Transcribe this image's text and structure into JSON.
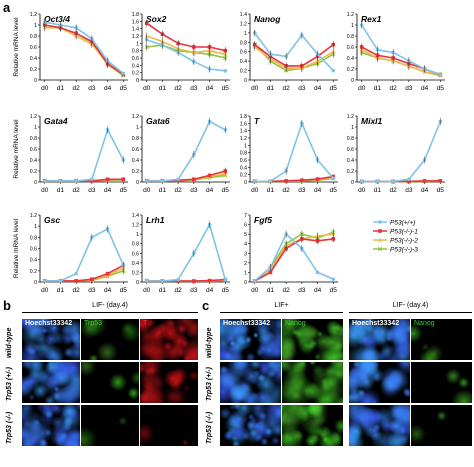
{
  "panels": {
    "a": "a",
    "b": "b",
    "c": "c"
  },
  "chart_data": [
    {
      "type": "line",
      "title": "Oct3/4",
      "ylabel": "Relative mRNA level",
      "ylim": [
        0,
        1.2
      ],
      "yticks": [
        "0",
        "0.2",
        "0.4",
        "0.6",
        "0.8",
        "1",
        "1.2"
      ],
      "categories": [
        "d0",
        "d1",
        "d2",
        "d3",
        "d4",
        "d5"
      ],
      "series": [
        {
          "name": "P53(+/+)",
          "values": [
            1.05,
            1.0,
            0.95,
            0.75,
            0.35,
            0.12
          ]
        },
        {
          "name": "P53(-/-)-1",
          "values": [
            1.0,
            0.95,
            0.85,
            0.7,
            0.3,
            0.1
          ]
        },
        {
          "name": "P53(-/-)-2",
          "values": [
            0.95,
            0.95,
            0.8,
            0.65,
            0.3,
            0.1
          ]
        },
        {
          "name": "P53(-/-)-3",
          "values": [
            1.0,
            0.95,
            0.85,
            0.68,
            0.28,
            0.08
          ]
        }
      ]
    },
    {
      "type": "line",
      "title": "Sox2",
      "ylim": [
        0,
        1.8
      ],
      "yticks": [
        "0",
        "0.2",
        "0.4",
        "0.6",
        "0.8",
        "1",
        "1.2",
        "1.4",
        "1.6",
        "1.8"
      ],
      "categories": [
        "d0",
        "d1",
        "d2",
        "d3",
        "d4",
        "d5"
      ],
      "series": [
        {
          "name": "P53(+/+)",
          "values": [
            1.1,
            0.95,
            0.75,
            0.5,
            0.3,
            0.25
          ]
        },
        {
          "name": "P53(-/-)-1",
          "values": [
            1.55,
            1.25,
            1.0,
            0.9,
            0.9,
            0.8
          ]
        },
        {
          "name": "P53(-/-)-2",
          "values": [
            1.2,
            1.05,
            0.85,
            0.75,
            0.8,
            0.7
          ]
        },
        {
          "name": "P53(-/-)-3",
          "values": [
            0.9,
            0.95,
            0.8,
            0.75,
            0.7,
            0.6
          ]
        }
      ]
    },
    {
      "type": "line",
      "title": "Nanog",
      "ylim": [
        0,
        1.4
      ],
      "yticks": [
        "0",
        "0.2",
        "0.4",
        "0.6",
        "0.8",
        "1",
        "1.2",
        "1.4"
      ],
      "categories": [
        "d0",
        "d1",
        "d2",
        "d3",
        "d4",
        "d5"
      ],
      "series": [
        {
          "name": "P53(+/+)",
          "values": [
            1.0,
            0.55,
            0.5,
            0.95,
            0.55,
            0.2
          ]
        },
        {
          "name": "P53(-/-)-1",
          "values": [
            0.75,
            0.5,
            0.3,
            0.3,
            0.5,
            0.75
          ]
        },
        {
          "name": "P53(-/-)-2",
          "values": [
            0.7,
            0.45,
            0.25,
            0.25,
            0.4,
            0.6
          ]
        },
        {
          "name": "P53(-/-)-3",
          "values": [
            0.75,
            0.4,
            0.2,
            0.25,
            0.35,
            0.55
          ]
        }
      ]
    },
    {
      "type": "line",
      "title": "Rex1",
      "ylim": [
        0,
        1.2
      ],
      "yticks": [
        "0",
        "0.2",
        "0.4",
        "0.6",
        "0.8",
        "1",
        "1.2"
      ],
      "categories": [
        "d0",
        "d1",
        "d2",
        "d3",
        "d4",
        "d5"
      ],
      "series": [
        {
          "name": "P53(+/+)",
          "values": [
            1.0,
            0.55,
            0.5,
            0.35,
            0.2,
            0.1
          ]
        },
        {
          "name": "P53(-/-)-1",
          "values": [
            0.6,
            0.45,
            0.4,
            0.3,
            0.2,
            0.1
          ]
        },
        {
          "name": "P53(-/-)-2",
          "values": [
            0.55,
            0.4,
            0.35,
            0.25,
            0.15,
            0.1
          ]
        },
        {
          "name": "P53(-/-)-3",
          "values": [
            0.5,
            0.4,
            0.35,
            0.25,
            0.15,
            0.08
          ]
        }
      ]
    },
    {
      "type": "line",
      "title": "Gata4",
      "ylabel": "Relative mRNA level",
      "ylim": [
        0,
        1.2
      ],
      "yticks": [
        "0",
        "0.2",
        "0.4",
        "0.6",
        "0.8",
        "1",
        "1.2"
      ],
      "categories": [
        "d0",
        "d1",
        "d2",
        "d3",
        "d4",
        "d5"
      ],
      "series": [
        {
          "name": "P53(+/+)",
          "values": [
            0.02,
            0.02,
            0.02,
            0.05,
            0.95,
            0.4
          ]
        },
        {
          "name": "P53(-/-)-1",
          "values": [
            0.02,
            0.02,
            0.02,
            0.02,
            0.05,
            0.05
          ]
        },
        {
          "name": "P53(-/-)-2",
          "values": [
            0.02,
            0.02,
            0.02,
            0.02,
            0.04,
            0.05
          ]
        },
        {
          "name": "P53(-/-)-3",
          "values": [
            0.02,
            0.02,
            0.02,
            0.02,
            0.03,
            0.04
          ]
        }
      ]
    },
    {
      "type": "line",
      "title": "Gata6",
      "ylim": [
        0,
        1.2
      ],
      "yticks": [
        "0",
        "0.2",
        "0.4",
        "0.6",
        "0.8",
        "1",
        "1.2"
      ],
      "categories": [
        "d0",
        "d1",
        "d2",
        "d3",
        "d4",
        "d5"
      ],
      "series": [
        {
          "name": "P53(+/+)",
          "values": [
            0.02,
            0.02,
            0.05,
            0.5,
            1.1,
            0.95
          ]
        },
        {
          "name": "P53(-/-)-1",
          "values": [
            0.02,
            0.02,
            0.03,
            0.05,
            0.12,
            0.2
          ]
        },
        {
          "name": "P53(-/-)-2",
          "values": [
            0.02,
            0.02,
            0.03,
            0.05,
            0.1,
            0.15
          ]
        },
        {
          "name": "P53(-/-)-3",
          "values": [
            0.02,
            0.02,
            0.02,
            0.04,
            0.08,
            0.12
          ]
        }
      ]
    },
    {
      "type": "line",
      "title": "T",
      "ylim": [
        0,
        1.8
      ],
      "yticks": [
        "0",
        "0.2",
        "0.4",
        "0.6",
        "0.8",
        "1",
        "1.2",
        "1.4",
        "1.6",
        "1.8"
      ],
      "categories": [
        "d0",
        "d1",
        "d2",
        "d3",
        "d4",
        "d5"
      ],
      "series": [
        {
          "name": "P53(+/+)",
          "values": [
            0.02,
            0.02,
            0.3,
            1.6,
            0.6,
            0.1
          ]
        },
        {
          "name": "P53(-/-)-1",
          "values": [
            0.02,
            0.02,
            0.03,
            0.05,
            0.08,
            0.15
          ]
        },
        {
          "name": "P53(-/-)-2",
          "values": [
            0.02,
            0.02,
            0.03,
            0.04,
            0.07,
            0.12
          ]
        },
        {
          "name": "P53(-/-)-3",
          "values": [
            0.02,
            0.02,
            0.02,
            0.03,
            0.05,
            0.1
          ]
        }
      ]
    },
    {
      "type": "line",
      "title": "Mixl1",
      "ylim": [
        0,
        1.2
      ],
      "yticks": [
        "0",
        "0.2",
        "0.4",
        "0.6",
        "0.8",
        "1",
        "1.2"
      ],
      "categories": [
        "d0",
        "d1",
        "d2",
        "d3",
        "d4",
        "d5"
      ],
      "series": [
        {
          "name": "P53(+/+)",
          "values": [
            0.01,
            0.01,
            0.01,
            0.05,
            0.4,
            1.1
          ]
        },
        {
          "name": "P53(-/-)-1",
          "values": [
            0.01,
            0.01,
            0.01,
            0.01,
            0.02,
            0.02
          ]
        },
        {
          "name": "P53(-/-)-2",
          "values": [
            0.01,
            0.01,
            0.01,
            0.01,
            0.02,
            0.02
          ]
        },
        {
          "name": "P53(-/-)-3",
          "values": [
            0.01,
            0.01,
            0.01,
            0.01,
            0.01,
            0.02
          ]
        }
      ]
    },
    {
      "type": "line",
      "title": "Gsc",
      "ylabel": "Relative mRNA level",
      "ylim": [
        0,
        1.2
      ],
      "yticks": [
        "0",
        "0.2",
        "0.4",
        "0.6",
        "0.8",
        "1",
        "1.2"
      ],
      "categories": [
        "d0",
        "d1",
        "d2",
        "d3",
        "d4",
        "d5"
      ],
      "series": [
        {
          "name": "P53(+/+)",
          "values": [
            0.02,
            0.02,
            0.15,
            0.8,
            0.95,
            0.3
          ]
        },
        {
          "name": "P53(-/-)-1",
          "values": [
            0.02,
            0.02,
            0.02,
            0.05,
            0.15,
            0.3
          ]
        },
        {
          "name": "P53(-/-)-2",
          "values": [
            0.02,
            0.02,
            0.02,
            0.04,
            0.12,
            0.25
          ]
        },
        {
          "name": "P53(-/-)-3",
          "values": [
            0.02,
            0.02,
            0.02,
            0.03,
            0.1,
            0.2
          ]
        }
      ]
    },
    {
      "type": "line",
      "title": "Lrh1",
      "ylim": [
        0,
        1.4
      ],
      "yticks": [
        "0",
        "0.2",
        "0.4",
        "0.6",
        "0.8",
        "1",
        "1.2",
        "1.4"
      ],
      "categories": [
        "d0",
        "d1",
        "d2",
        "d3",
        "d4",
        "d5"
      ],
      "series": [
        {
          "name": "P53(+/+)",
          "values": [
            0.02,
            0.02,
            0.05,
            0.6,
            1.2,
            0.05
          ]
        },
        {
          "name": "P53(-/-)-1",
          "values": [
            0.02,
            0.02,
            0.02,
            0.02,
            0.03,
            0.05
          ]
        },
        {
          "name": "P53(-/-)-2",
          "values": [
            0.02,
            0.02,
            0.02,
            0.02,
            0.02,
            0.04
          ]
        },
        {
          "name": "P53(-/-)-3",
          "values": [
            0.02,
            0.02,
            0.02,
            0.02,
            0.02,
            0.03
          ]
        }
      ]
    },
    {
      "type": "line",
      "title": "Fgf5",
      "ylim": [
        0,
        7
      ],
      "yticks": [
        "0",
        "1",
        "2",
        "3",
        "4",
        "5",
        "6",
        "7"
      ],
      "categories": [
        "d0",
        "d1",
        "d2",
        "d3",
        "d4",
        "d5"
      ],
      "series": [
        {
          "name": "P53(+/+)",
          "values": [
            0.1,
            1.5,
            5.0,
            3.5,
            1.0,
            0.3
          ]
        },
        {
          "name": "P53(-/-)-1",
          "values": [
            0.1,
            1.0,
            3.5,
            4.5,
            4.3,
            4.5
          ]
        },
        {
          "name": "P53(-/-)-2",
          "values": [
            0.1,
            1.2,
            3.8,
            4.5,
            4.8,
            5.0
          ]
        },
        {
          "name": "P53(-/-)-3",
          "values": [
            0.1,
            1.5,
            4.0,
            5.0,
            4.6,
            5.2
          ]
        }
      ]
    }
  ],
  "legend": {
    "entries": [
      {
        "label": "P53(+/+)",
        "color": "#7fc3ea"
      },
      {
        "label": "P53(-/-)-1",
        "color": "#e8333b"
      },
      {
        "label": "P53(-/-)-2",
        "color": "#f0b84a"
      },
      {
        "label": "P53(-/-)-3",
        "color": "#8dc63f"
      }
    ]
  },
  "panel_b": {
    "condition": "LIF- (day.4)",
    "columns": [
      "Hoechst33342",
      "Trp53",
      "T"
    ],
    "column_colors": [
      "#ffffff",
      "#3ccf3c",
      "#ff3b3b"
    ],
    "rows": [
      "wild-type",
      "Trp53 (+/-)",
      "Trp53 (-/-)"
    ]
  },
  "panel_c": {
    "condition_left": "LIF+",
    "condition_right": "LIF- (day.4)",
    "columns": [
      "Hoechst33342",
      "Nanog",
      "Hoechst33342",
      "Nanog"
    ],
    "column_colors": [
      "#ffffff",
      "#3ccf3c",
      "#ffffff",
      "#3ccf3c"
    ],
    "rows": [
      "wild-type",
      "Trp53 (+/-)",
      "Trp53 (-/-)"
    ]
  },
  "colors": {
    "blue": "#7fc3ea",
    "red": "#e8333b",
    "orange": "#f0b84a",
    "green": "#8dc63f"
  }
}
